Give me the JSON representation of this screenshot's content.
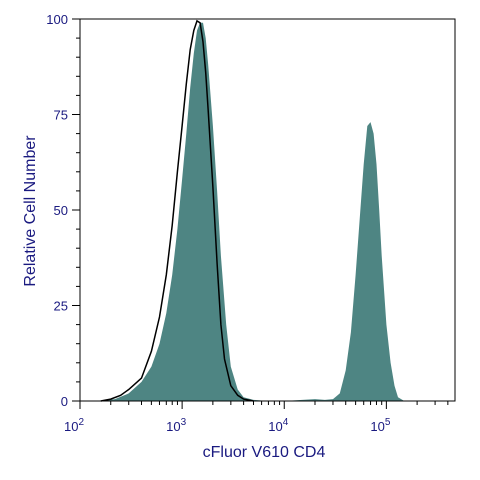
{
  "chart_data": {
    "type": "area",
    "xlabel": "cFluor V610 CD4",
    "ylabel": "Relative Cell Number",
    "xscale": "log",
    "xlim": [
      100,
      470000
    ],
    "ylim": [
      0,
      100
    ],
    "grid": false,
    "legend": "none",
    "x_ticks": [
      {
        "value": 100,
        "base": "10",
        "exp": "2"
      },
      {
        "value": 1000,
        "base": "10",
        "exp": "3"
      },
      {
        "value": 10000,
        "base": "10",
        "exp": "4"
      },
      {
        "value": 100000,
        "base": "10",
        "exp": "5"
      }
    ],
    "y_ticks": [
      0,
      25,
      50,
      75,
      100
    ],
    "series": [
      {
        "style": "filled",
        "color": "#4e8583",
        "points": [
          [
            150,
            0
          ],
          [
            220,
            0.5
          ],
          [
            300,
            2
          ],
          [
            400,
            5
          ],
          [
            500,
            9
          ],
          [
            600,
            15
          ],
          [
            700,
            23
          ],
          [
            800,
            33
          ],
          [
            900,
            45
          ],
          [
            1000,
            58
          ],
          [
            1100,
            70
          ],
          [
            1200,
            82
          ],
          [
            1300,
            91
          ],
          [
            1400,
            97
          ],
          [
            1500,
            99
          ],
          [
            1600,
            99
          ],
          [
            1700,
            95
          ],
          [
            1800,
            88
          ],
          [
            2000,
            72
          ],
          [
            2200,
            55
          ],
          [
            2400,
            38
          ],
          [
            2700,
            20
          ],
          [
            3000,
            9
          ],
          [
            3500,
            3
          ],
          [
            4000,
            1
          ],
          [
            5000,
            0.3
          ],
          [
            7000,
            0
          ],
          [
            10000,
            0
          ],
          [
            15000,
            0.3
          ],
          [
            20000,
            0.5
          ],
          [
            25000,
            0.3
          ],
          [
            30000,
            0.5
          ],
          [
            35000,
            2
          ],
          [
            40000,
            8
          ],
          [
            45000,
            18
          ],
          [
            50000,
            33
          ],
          [
            55000,
            48
          ],
          [
            60000,
            62
          ],
          [
            65000,
            72
          ],
          [
            70000,
            73
          ],
          [
            75000,
            70
          ],
          [
            80000,
            62
          ],
          [
            85000,
            50
          ],
          [
            90000,
            38
          ],
          [
            100000,
            20
          ],
          [
            110000,
            10
          ],
          [
            120000,
            4
          ],
          [
            130000,
            1
          ],
          [
            150000,
            0
          ]
        ]
      },
      {
        "style": "outline",
        "color": "#000000",
        "points": [
          [
            160,
            0
          ],
          [
            200,
            0.5
          ],
          [
            250,
            1.5
          ],
          [
            300,
            3
          ],
          [
            400,
            6
          ],
          [
            500,
            13
          ],
          [
            600,
            22
          ],
          [
            700,
            33
          ],
          [
            800,
            46
          ],
          [
            900,
            60
          ],
          [
            1000,
            72
          ],
          [
            1100,
            83
          ],
          [
            1200,
            92
          ],
          [
            1300,
            97
          ],
          [
            1400,
            99.5
          ],
          [
            1500,
            99
          ],
          [
            1600,
            94
          ],
          [
            1700,
            86
          ],
          [
            1800,
            76
          ],
          [
            2000,
            56
          ],
          [
            2200,
            36
          ],
          [
            2400,
            20
          ],
          [
            2600,
            11
          ],
          [
            3000,
            4
          ],
          [
            3500,
            1.5
          ],
          [
            4000,
            0.5
          ],
          [
            5000,
            0
          ]
        ]
      }
    ]
  }
}
